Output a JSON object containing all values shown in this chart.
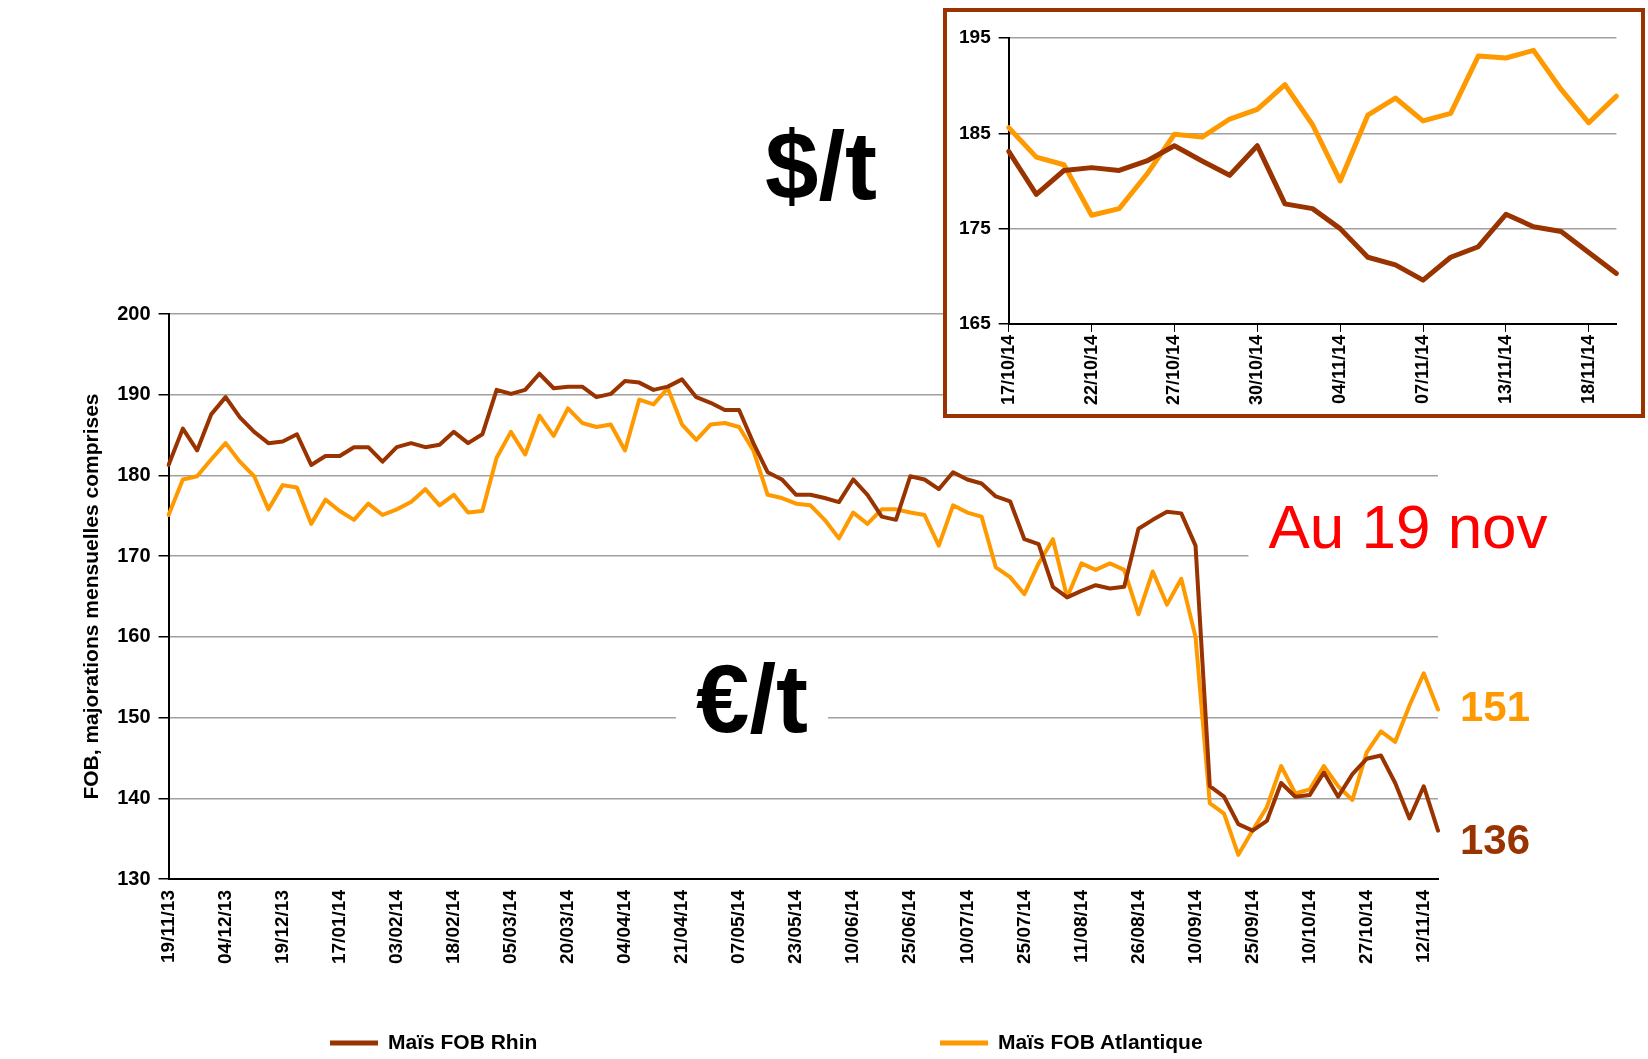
{
  "chart_data": [
    {
      "type": "line",
      "ylabel": "FOB, majorations mensuelles comprises",
      "categories": [
        "19/11/13",
        null,
        null,
        null,
        "04/12/13",
        null,
        null,
        null,
        "19/12/13",
        null,
        null,
        null,
        "17/01/14",
        null,
        null,
        null,
        "03/02/14",
        null,
        null,
        null,
        "18/02/14",
        null,
        null,
        null,
        "05/03/14",
        null,
        null,
        null,
        "20/03/14",
        null,
        null,
        null,
        "04/04/14",
        null,
        null,
        null,
        "21/04/14",
        null,
        null,
        null,
        "07/05/14",
        null,
        null,
        null,
        "23/05/14",
        null,
        null,
        null,
        "10/06/14",
        null,
        null,
        null,
        "25/06/14",
        null,
        null,
        null,
        "10/07/14",
        null,
        null,
        null,
        "25/07/14",
        null,
        null,
        null,
        "11/08/14",
        null,
        null,
        null,
        "26/08/14",
        null,
        null,
        null,
        "10/09/14",
        null,
        null,
        null,
        "25/09/14",
        null,
        null,
        null,
        "10/10/14",
        null,
        null,
        null,
        "27/10/14",
        null,
        null,
        null,
        "12/11/14",
        null
      ],
      "series": [
        {
          "name": "Maïs FOB Rhin",
          "color": "#993300",
          "values": [
            181.3,
            185.8,
            183.1,
            187.6,
            189.7,
            187.2,
            185.4,
            184.0,
            184.2,
            185.1,
            181.3,
            182.4,
            182.4,
            183.5,
            183.5,
            181.7,
            183.5,
            184.0,
            183.5,
            183.8,
            185.4,
            184.0,
            185.1,
            190.6,
            190.1,
            190.6,
            192.6,
            190.8,
            191.0,
            191.0,
            189.7,
            190.1,
            191.7,
            191.5,
            190.6,
            191.0,
            191.9,
            189.7,
            189.0,
            188.1,
            188.1,
            184.0,
            180.4,
            179.5,
            177.6,
            177.6,
            177.2,
            176.7,
            179.5,
            177.6,
            174.9,
            174.5,
            179.9,
            179.5,
            178.3,
            180.4,
            179.5,
            179.0,
            177.4,
            176.8,
            172.1,
            171.5,
            166.2,
            164.9,
            165.7,
            166.4,
            166.0,
            166.2,
            173.4,
            174.5,
            175.5,
            175.3,
            171.3,
            141.5,
            140.2,
            136.8,
            136.0,
            137.2,
            141.9,
            140.2,
            140.4,
            143.2,
            140.2,
            143.0,
            144.9,
            145.3,
            141.9,
            137.5,
            141.5,
            136
          ],
          "value_labels": [
            null,
            null,
            null,
            null,
            null,
            null,
            null,
            null,
            null,
            null,
            null,
            null,
            null,
            null,
            null,
            null,
            null,
            null,
            null,
            null,
            null,
            null,
            null,
            null,
            null,
            null,
            null,
            null,
            null,
            null,
            null,
            null,
            null,
            null,
            null,
            null,
            null,
            null,
            null,
            null,
            null,
            null,
            null,
            null,
            null,
            null,
            null,
            null,
            null,
            null,
            null,
            null,
            null,
            null,
            null,
            null,
            null,
            null,
            null,
            null,
            null,
            null,
            null,
            null,
            null,
            null,
            null,
            null,
            null,
            null,
            null,
            null,
            null,
            null,
            null,
            null,
            null,
            null,
            null,
            null,
            null,
            null,
            null,
            null,
            null,
            null,
            null,
            null,
            null,
            "136"
          ]
        },
        {
          "name": "Maïs FOB Atlantique",
          "color": "#ff9900",
          "values": [
            175.1,
            179.5,
            179.9,
            182.0,
            184.0,
            181.7,
            179.9,
            175.8,
            178.8,
            178.5,
            174.0,
            177.0,
            175.6,
            174.5,
            176.5,
            175.1,
            175.8,
            176.7,
            178.3,
            176.3,
            177.6,
            175.4,
            175.6,
            182.2,
            185.4,
            182.6,
            187.4,
            184.9,
            188.3,
            186.5,
            186.0,
            186.3,
            183.1,
            189.4,
            188.8,
            190.8,
            186.3,
            184.4,
            186.3,
            186.5,
            186.0,
            183.1,
            177.6,
            177.2,
            176.5,
            176.3,
            174.5,
            172.2,
            175.4,
            174.0,
            175.8,
            175.8,
            175.4,
            175.1,
            171.3,
            176.3,
            175.4,
            174.9,
            168.6,
            167.4,
            165.3,
            169.1,
            172.1,
            164.9,
            169.1,
            168.3,
            169.1,
            168.3,
            162.8,
            168.1,
            164.0,
            167.2,
            160.0,
            139.4,
            138.1,
            133.0,
            136.0,
            138.9,
            144.0,
            140.6,
            141.1,
            144.0,
            141.5,
            139.8,
            145.7,
            148.3,
            147.0,
            151.5,
            155.5,
            151
          ],
          "value_labels": [
            null,
            null,
            null,
            null,
            null,
            null,
            null,
            null,
            null,
            null,
            null,
            null,
            null,
            null,
            null,
            null,
            null,
            null,
            null,
            null,
            null,
            null,
            null,
            null,
            null,
            null,
            null,
            null,
            null,
            null,
            null,
            null,
            null,
            null,
            null,
            null,
            null,
            null,
            null,
            null,
            null,
            null,
            null,
            null,
            null,
            null,
            null,
            null,
            null,
            null,
            null,
            null,
            null,
            null,
            null,
            null,
            null,
            null,
            null,
            null,
            null,
            null,
            null,
            null,
            null,
            null,
            null,
            null,
            null,
            null,
            null,
            null,
            null,
            null,
            null,
            null,
            null,
            null,
            null,
            null,
            null,
            null,
            null,
            null,
            null,
            null,
            null,
            null,
            null,
            "151"
          ]
        }
      ],
      "ylim": [
        130,
        200
      ],
      "yticks": [
        130,
        140,
        150,
        160,
        170,
        180,
        190,
        200
      ],
      "grid": "y",
      "legend": "bottom",
      "marker": "none",
      "line_style": "solid",
      "annotations": [
        "Au 19 nov",
        "€/t"
      ]
    },
    {
      "type": "line",
      "categories": [
        "17/10/14",
        null,
        null,
        "22/10/14",
        null,
        null,
        "27/10/14",
        null,
        null,
        "30/10/14",
        null,
        null,
        "04/11/14",
        null,
        null,
        "07/11/14",
        null,
        null,
        "13/11/14",
        null,
        null,
        "18/11/14",
        null
      ],
      "series": [
        {
          "color": "#993300",
          "values": [
            183.1,
            178.6,
            181.1,
            181.4,
            181.1,
            182.1,
            183.7,
            182.1,
            180.6,
            183.7,
            177.6,
            177.1,
            175.0,
            172.0,
            171.2,
            169.6,
            172.0,
            173.1,
            176.5,
            175.2,
            174.7,
            172.5,
            170.3
          ]
        },
        {
          "color": "#ff9900",
          "values": [
            185.6,
            182.5,
            181.7,
            176.4,
            177.1,
            180.7,
            184.9,
            184.6,
            186.5,
            187.5,
            190.1,
            185.9,
            180.0,
            186.9,
            188.7,
            186.3,
            187.1,
            193.1,
            192.9,
            193.7,
            189.6,
            186.1,
            188.9
          ]
        }
      ],
      "ylim": [
        165,
        195
      ],
      "yticks": [
        165,
        175,
        185,
        195
      ],
      "grid": "y",
      "legend": false,
      "marker": "none",
      "line_style": "solid",
      "annotations": [
        "$/t"
      ]
    }
  ]
}
